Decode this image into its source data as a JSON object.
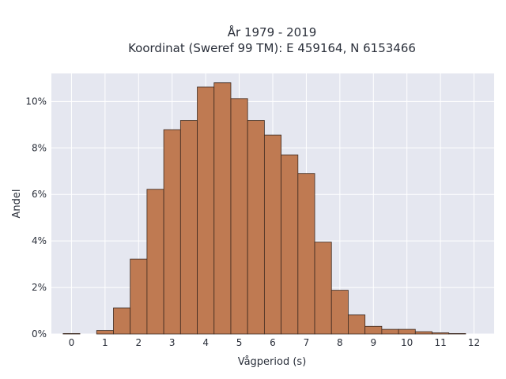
{
  "chart_data": {
    "type": "bar",
    "title_line1": "År 1979 - 2019",
    "title_line2": "Koordinat (Sweref 99 TM): E 459164, N 6153466",
    "xlabel": "Vågperiod (s)",
    "ylabel": "Andel",
    "xlim": [
      -0.6,
      12.6
    ],
    "ylim": [
      0,
      11.2
    ],
    "grid": true,
    "bin_width": 0.5,
    "x_ticks": [
      0,
      1,
      2,
      3,
      4,
      5,
      6,
      7,
      8,
      9,
      10,
      11,
      12
    ],
    "y_ticks": [
      {
        "value": 0,
        "label": "0%"
      },
      {
        "value": 2,
        "label": "2%"
      },
      {
        "value": 4,
        "label": "4%"
      },
      {
        "value": 6,
        "label": "6%"
      },
      {
        "value": 8,
        "label": "8%"
      },
      {
        "value": 10,
        "label": "10%"
      }
    ],
    "bins": [
      {
        "x": 0.0,
        "value": 0.02
      },
      {
        "x": 1.0,
        "value": 0.15
      },
      {
        "x": 1.5,
        "value": 1.12
      },
      {
        "x": 2.0,
        "value": 3.22
      },
      {
        "x": 2.5,
        "value": 6.22
      },
      {
        "x": 3.0,
        "value": 8.78
      },
      {
        "x": 3.5,
        "value": 9.18
      },
      {
        "x": 4.0,
        "value": 10.62
      },
      {
        "x": 4.5,
        "value": 10.8
      },
      {
        "x": 5.0,
        "value": 10.12
      },
      {
        "x": 5.5,
        "value": 9.18
      },
      {
        "x": 6.0,
        "value": 8.55
      },
      {
        "x": 6.5,
        "value": 7.7
      },
      {
        "x": 7.0,
        "value": 6.9
      },
      {
        "x": 7.5,
        "value": 3.95
      },
      {
        "x": 8.0,
        "value": 1.88
      },
      {
        "x": 8.5,
        "value": 0.82
      },
      {
        "x": 9.0,
        "value": 0.33
      },
      {
        "x": 9.5,
        "value": 0.2
      },
      {
        "x": 10.0,
        "value": 0.2
      },
      {
        "x": 10.5,
        "value": 0.1
      },
      {
        "x": 11.0,
        "value": 0.05
      },
      {
        "x": 11.5,
        "value": 0.02
      }
    ],
    "colors": {
      "bar_fill": "#bf7a52",
      "bar_stroke": "#3d2a20",
      "plot_bg": "#e5e7f0",
      "grid": "#ffffff"
    }
  }
}
